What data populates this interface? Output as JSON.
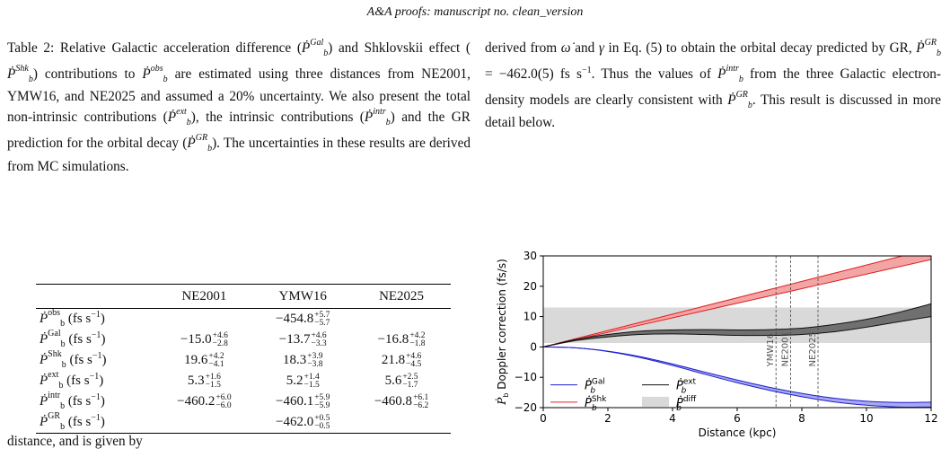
{
  "header": "A&A proofs: manuscript no. clean_version",
  "caption": {
    "p1": "Table 2: Relative Galactic acceleration difference (",
    "p2": ") and Shklovskii effect (",
    "p3": ") contributions to ",
    "p4": " are estimated using three distances from NE2001, YMW16, and NE2025 and assumed a 20% uncertainty. We also present the total non-intrinsic contributions (",
    "p5": "), the intrinsic contributions (",
    "p6": ") and the GR prediction for the orbital decay (",
    "p7": "). The uncertainties in these results are derived from MC simulations."
  },
  "right_text": {
    "p1": "derived from ",
    "omega": "ω̇",
    "p2": " and ",
    "gamma": "γ",
    "p3": " in Eq. (5) to obtain the orbital decay predicted by GR, ",
    "p4": " = −462.0(5) fs s",
    "p5": ". Thus the values of ",
    "p6": " from the three Galactic electron-density models are clearly consistent with ",
    "p7": ". This result is discussed in more detail below."
  },
  "lower_text": "distance, and is given by",
  "table": {
    "columns": [
      "NE2001",
      "YMW16",
      "NE2025"
    ],
    "unit": "(fs s",
    "rows": [
      {
        "label": "obs",
        "cells": [
          null,
          {
            "v": "−454.8",
            "up": "+5.7",
            "dn": "−5.7"
          },
          null
        ]
      },
      {
        "label": "Gal",
        "cells": [
          {
            "v": "−15.0",
            "up": "+4.6",
            "dn": "−2.8"
          },
          {
            "v": "−13.7",
            "up": "+4.6",
            "dn": "−3.3"
          },
          {
            "v": "−16.8",
            "up": "+4.2",
            "dn": "−1.8"
          }
        ]
      },
      {
        "label": "Shk",
        "cells": [
          {
            "v": "19.6",
            "up": "+4.2",
            "dn": "−4.1"
          },
          {
            "v": "18.3",
            "up": "+3.9",
            "dn": "−3.8"
          },
          {
            "v": "21.8",
            "up": "+4.6",
            "dn": "−4.5"
          }
        ]
      },
      {
        "label": "ext",
        "cells": [
          {
            "v": "5.3",
            "up": "+1.6",
            "dn": "−1.5"
          },
          {
            "v": "5.2",
            "up": "+1.4",
            "dn": "−1.5"
          },
          {
            "v": "5.6",
            "up": "+2.5",
            "dn": "−1.7"
          }
        ]
      },
      {
        "label": "intr",
        "cells": [
          {
            "v": "−460.2",
            "up": "+6.0",
            "dn": "−6.0"
          },
          {
            "v": "−460.1",
            "up": "+5.9",
            "dn": "−5.9"
          },
          {
            "v": "−460.8",
            "up": "+6.1",
            "dn": "−6.2"
          }
        ]
      },
      {
        "label": "GR",
        "cells": [
          null,
          {
            "v": "−462.0",
            "up": "+0.5",
            "dn": "−0.5"
          },
          null
        ]
      }
    ]
  },
  "chart_data": {
    "type": "line",
    "xlabel": "Distance (kpc)",
    "ylabel": "Doppler correction (fs/s)",
    "xlim": [
      0,
      12
    ],
    "ylim": [
      -20,
      30
    ],
    "xticks": [
      "0",
      "2",
      "4",
      "6",
      "8",
      "10",
      "12"
    ],
    "yticks": [
      "−20",
      "−10",
      "0",
      "10",
      "20",
      "30"
    ],
    "grid": false,
    "legend": "bottom-left",
    "x": [
      0,
      1,
      2,
      3,
      4,
      5,
      6,
      7,
      8,
      9,
      10,
      11,
      12
    ],
    "series": [
      {
        "name": "Gal",
        "color": "#1f1fd0",
        "upper": [
          0,
          -0.3,
          -1.4,
          -3.2,
          -5.6,
          -8.3,
          -10.9,
          -13.3,
          -15.3,
          -16.9,
          -17.9,
          -18.3,
          -18.2
        ],
        "lower": [
          0,
          -0.3,
          -1.5,
          -3.5,
          -6.1,
          -9.0,
          -11.8,
          -14.3,
          -16.4,
          -18.1,
          -19.2,
          -19.8,
          -19.8
        ]
      },
      {
        "name": "Shk",
        "color": "#e02020",
        "upper": [
          0,
          2.7,
          5.4,
          8.1,
          10.8,
          13.5,
          16.2,
          18.9,
          21.6,
          24.3,
          27.0,
          29.7,
          32.4
        ],
        "lower": [
          0,
          2.4,
          4.8,
          7.2,
          9.6,
          12.0,
          14.4,
          16.8,
          19.2,
          21.6,
          24.0,
          26.4,
          28.8
        ]
      },
      {
        "name": "ext",
        "color": "#111111",
        "upper": [
          0,
          2.4,
          4.1,
          5.2,
          5.6,
          5.7,
          5.6,
          5.7,
          6.2,
          7.4,
          9.1,
          11.4,
          14.2
        ],
        "lower": [
          0,
          2.1,
          3.3,
          4.1,
          4.3,
          4.1,
          3.8,
          3.8,
          4.1,
          5.0,
          6.5,
          8.3,
          10.0
        ]
      },
      {
        "name": "diff",
        "color": "#d9d9d9",
        "band": [
          1.3,
          13.0
        ]
      }
    ],
    "vlines": [
      {
        "x": 7.2,
        "label": "YMW16"
      },
      {
        "x": 7.65,
        "label": "NE2001"
      },
      {
        "x": 8.5,
        "label": "NE2025"
      }
    ]
  }
}
